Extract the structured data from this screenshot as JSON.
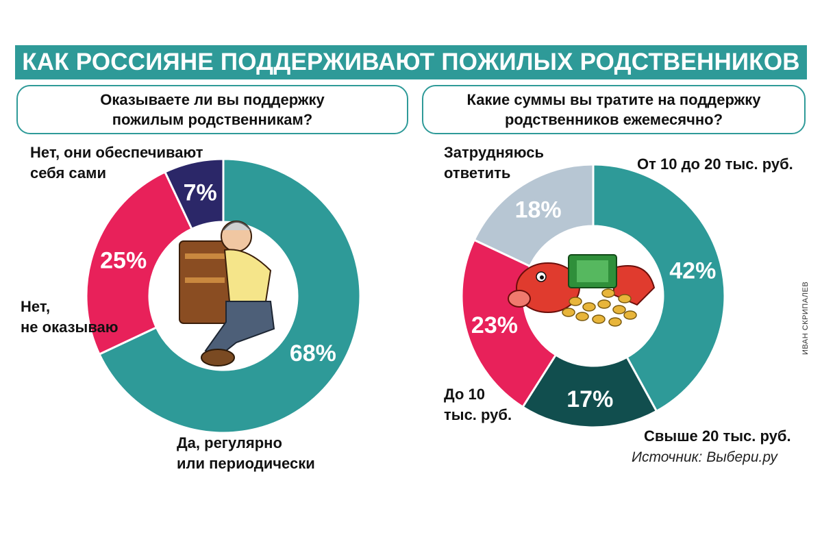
{
  "title": "КАК РОССИЯНЕ ПОДДЕРЖИВАЮТ ПОЖИЛЫХ РОДСТВЕННИКОВ",
  "source": "Источник: Выбери.ру",
  "credit": "ИВАН СКРИПАЛЕВ",
  "colors": {
    "banner": "#2e9a98",
    "teal": "#2e9a98",
    "crimson": "#e8215a",
    "navy": "#2b2768",
    "darkteal": "#114e4e",
    "lightblue": "#b7c6d3"
  },
  "chart_data": [
    {
      "type": "pie",
      "style": "donut",
      "title": "Оказываете ли вы поддержку\nпожилым родственникам?",
      "value_unit": "%",
      "slices": [
        {
          "label": "Да, регулярно\nили периодически",
          "value": 68,
          "value_label": "68%",
          "color": "#2e9a98"
        },
        {
          "label": "Нет,\nне оказываю",
          "value": 25,
          "value_label": "25%",
          "color": "#e8215a"
        },
        {
          "label": "Нет, они обеспечивают\nсебя сами",
          "value": 7,
          "value_label": "7%",
          "color": "#2b2768"
        }
      ]
    },
    {
      "type": "pie",
      "style": "donut",
      "title": "Какие суммы вы тратите на поддержку\nродственников ежемесячно?",
      "value_unit": "%",
      "slices": [
        {
          "label": "От 10 до 20 тыс. руб.",
          "value": 42,
          "value_label": "42%",
          "color": "#2e9a98"
        },
        {
          "label": "Свыше 20 тыс. руб.",
          "value": 17,
          "value_label": "17%",
          "color": "#114e4e"
        },
        {
          "label": "До 10\nтыс. руб.",
          "value": 23,
          "value_label": "23%",
          "color": "#e8215a"
        },
        {
          "label": "Затрудняюсь\nответить",
          "value": 18,
          "value_label": "18%",
          "color": "#b7c6d3"
        }
      ]
    }
  ]
}
